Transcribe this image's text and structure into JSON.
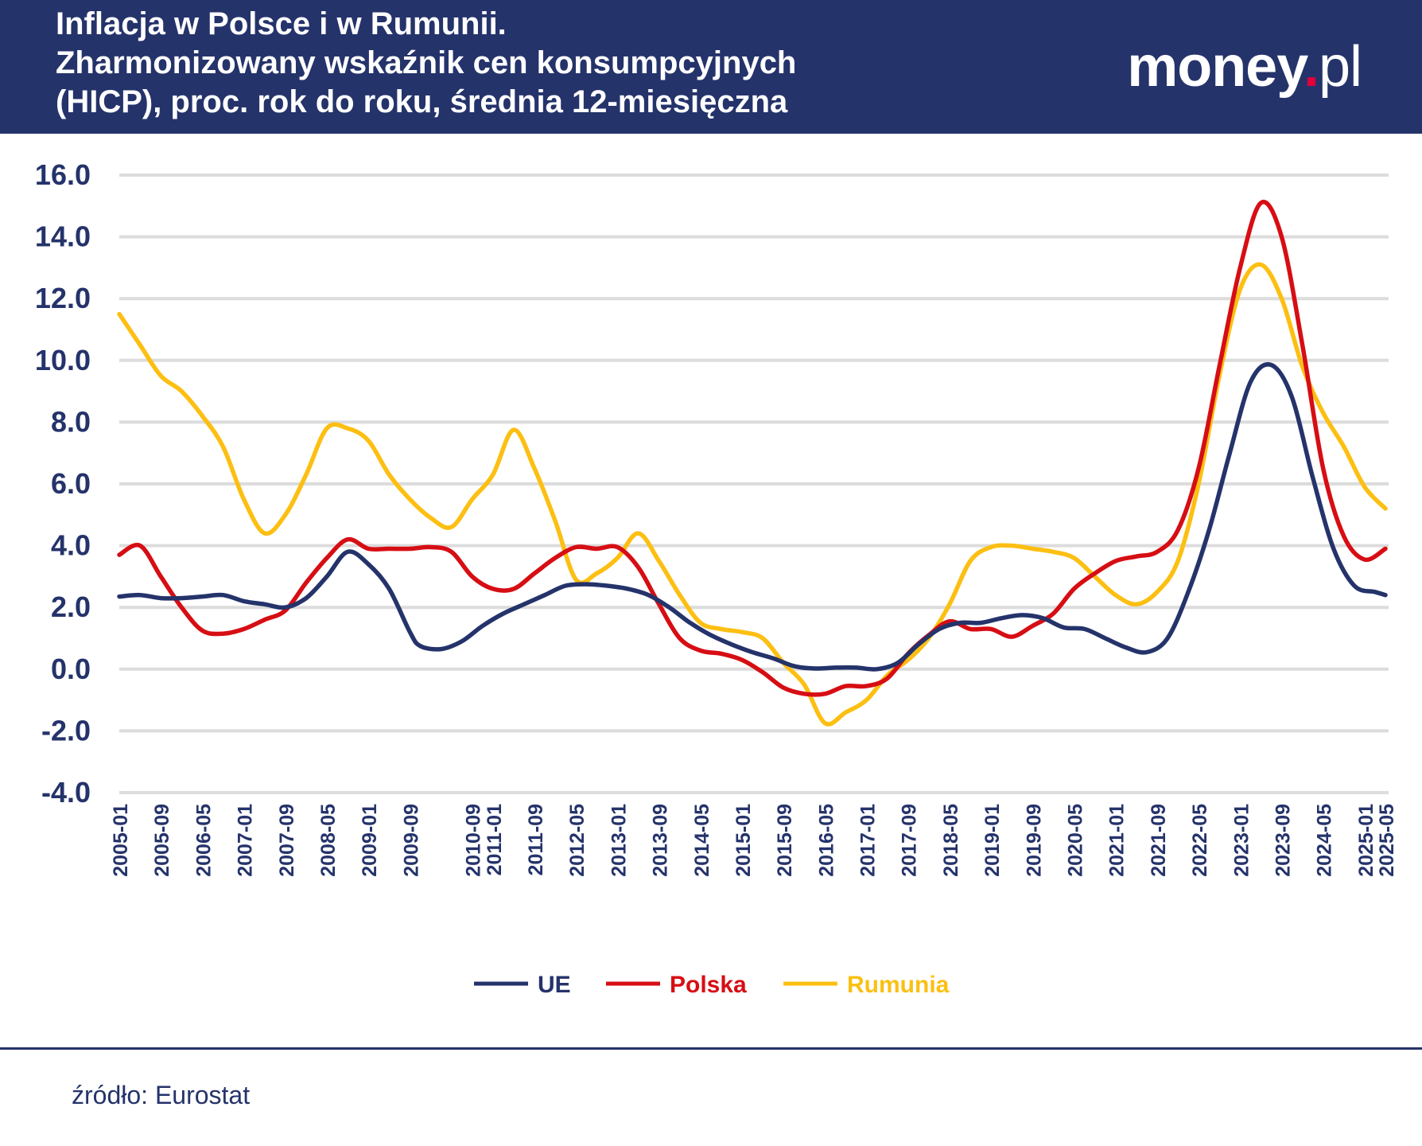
{
  "header": {
    "title_lines": [
      "Inflacja w Polsce i w Rumunii.",
      "Zharmonizowany wskaźnik cen konsumpcyjnych",
      "(HICP), proc. rok do roku, średnia 12-miesięczna"
    ],
    "logo_main": "money",
    "logo_dot": ".",
    "logo_suffix": "pl",
    "background_color": "#25336b",
    "logo_dot_color": "#e2003b"
  },
  "footer": {
    "source": "źródło: Eurostat",
    "rule_color": "#25336b"
  },
  "chart_data": {
    "type": "line",
    "title": "Inflacja w Polsce i w Rumunii. Zharmonizowany wskaźnik cen konsumpcyjnych (HICP), proc. rok do roku, średnia 12-miesięczna",
    "xlabel": "",
    "ylabel": "",
    "ylim": [
      -4.0,
      16.0
    ],
    "y_ticks": [
      16.0,
      14.0,
      12.0,
      10.0,
      8.0,
      6.0,
      4.0,
      2.0,
      0.0,
      -2.0,
      -4.0
    ],
    "y_tick_labels": [
      "16.0",
      "14.0",
      "12.0",
      "10.0",
      "8.0",
      "6.0",
      "4.0",
      "2.0",
      "0.0",
      "-2.0",
      "-4.0"
    ],
    "x_start": "2005-01",
    "x_end": "2025-05",
    "x_tick_labels": [
      "2005-01",
      "2005-09",
      "2006-05",
      "2007-01",
      "2007-09",
      "2008-05",
      "2009-01",
      "2009-09",
      "2010-09",
      "2011-01",
      "2011-09",
      "2012-05",
      "2013-01",
      "2013-09",
      "2014-05",
      "2015-01",
      "2015-09",
      "2016-05",
      "2017-01",
      "2017-09",
      "2018-05",
      "2019-01",
      "2019-09",
      "2020-05",
      "2021-01",
      "2021-09",
      "2022-05",
      "2023-01",
      "2023-09",
      "2024-05",
      "2025-01",
      "2025-05"
    ],
    "grid": true,
    "legend_position": "bottom-center",
    "axis_color": "#25336b",
    "grid_color": "#dcdcdc",
    "series": [
      {
        "name": "UE",
        "color": "#25336b",
        "points": [
          [
            "2005-01",
            2.35
          ],
          [
            "2005-05",
            2.4
          ],
          [
            "2005-09",
            2.3
          ],
          [
            "2006-01",
            2.3
          ],
          [
            "2006-05",
            2.35
          ],
          [
            "2006-09",
            2.4
          ],
          [
            "2007-01",
            2.2
          ],
          [
            "2007-05",
            2.1
          ],
          [
            "2007-09",
            2.0
          ],
          [
            "2008-01",
            2.3
          ],
          [
            "2008-05",
            3.0
          ],
          [
            "2008-09",
            3.8
          ],
          [
            "2009-01",
            3.4
          ],
          [
            "2009-05",
            2.6
          ],
          [
            "2009-09",
            1.2
          ],
          [
            "2009-11",
            0.75
          ],
          [
            "2010-03",
            0.65
          ],
          [
            "2010-07",
            0.9
          ],
          [
            "2010-11",
            1.4
          ],
          [
            "2011-03",
            1.8
          ],
          [
            "2011-07",
            2.1
          ],
          [
            "2011-11",
            2.4
          ],
          [
            "2012-03",
            2.7
          ],
          [
            "2012-07",
            2.75
          ],
          [
            "2012-11",
            2.7
          ],
          [
            "2013-03",
            2.6
          ],
          [
            "2013-07",
            2.4
          ],
          [
            "2013-11",
            2.0
          ],
          [
            "2014-03",
            1.5
          ],
          [
            "2014-07",
            1.1
          ],
          [
            "2014-11",
            0.8
          ],
          [
            "2015-03",
            0.55
          ],
          [
            "2015-07",
            0.35
          ],
          [
            "2015-11",
            0.1
          ],
          [
            "2016-03",
            0.02
          ],
          [
            "2016-07",
            0.05
          ],
          [
            "2016-11",
            0.05
          ],
          [
            "2017-03",
            0.0
          ],
          [
            "2017-07",
            0.2
          ],
          [
            "2017-11",
            0.8
          ],
          [
            "2018-03",
            1.3
          ],
          [
            "2018-07",
            1.5
          ],
          [
            "2018-11",
            1.5
          ],
          [
            "2019-03",
            1.65
          ],
          [
            "2019-07",
            1.75
          ],
          [
            "2019-11",
            1.65
          ],
          [
            "2020-03",
            1.35
          ],
          [
            "2020-07",
            1.3
          ],
          [
            "2020-11",
            1.0
          ],
          [
            "2021-03",
            0.7
          ],
          [
            "2021-07",
            0.55
          ],
          [
            "2021-11",
            1.0
          ],
          [
            "2022-03",
            2.5
          ],
          [
            "2022-07",
            4.5
          ],
          [
            "2022-11",
            7.0
          ],
          [
            "2023-03",
            9.3
          ],
          [
            "2023-07",
            9.85
          ],
          [
            "2023-11",
            8.8
          ],
          [
            "2024-03",
            6.2
          ],
          [
            "2024-07",
            3.9
          ],
          [
            "2024-11",
            2.7
          ],
          [
            "2025-03",
            2.5
          ],
          [
            "2025-05",
            2.4
          ]
        ]
      },
      {
        "name": "Polska",
        "color": "#d60e14",
        "points": [
          [
            "2005-01",
            3.7
          ],
          [
            "2005-05",
            4.0
          ],
          [
            "2005-09",
            3.0
          ],
          [
            "2006-01",
            2.0
          ],
          [
            "2006-05",
            1.25
          ],
          [
            "2006-09",
            1.15
          ],
          [
            "2007-01",
            1.3
          ],
          [
            "2007-05",
            1.6
          ],
          [
            "2007-09",
            1.9
          ],
          [
            "2008-01",
            2.8
          ],
          [
            "2008-05",
            3.6
          ],
          [
            "2008-09",
            4.2
          ],
          [
            "2009-01",
            3.9
          ],
          [
            "2009-05",
            3.9
          ],
          [
            "2009-09",
            3.9
          ],
          [
            "2010-01",
            3.95
          ],
          [
            "2010-05",
            3.8
          ],
          [
            "2010-09",
            3.0
          ],
          [
            "2011-01",
            2.6
          ],
          [
            "2011-05",
            2.6
          ],
          [
            "2011-09",
            3.1
          ],
          [
            "2012-01",
            3.6
          ],
          [
            "2012-05",
            3.95
          ],
          [
            "2012-09",
            3.9
          ],
          [
            "2013-01",
            3.95
          ],
          [
            "2013-05",
            3.3
          ],
          [
            "2013-09",
            2.1
          ],
          [
            "2014-01",
            1.0
          ],
          [
            "2014-05",
            0.6
          ],
          [
            "2014-09",
            0.5
          ],
          [
            "2015-01",
            0.3
          ],
          [
            "2015-05",
            -0.1
          ],
          [
            "2015-09",
            -0.6
          ],
          [
            "2016-01",
            -0.8
          ],
          [
            "2016-05",
            -0.8
          ],
          [
            "2016-09",
            -0.55
          ],
          [
            "2017-01",
            -0.55
          ],
          [
            "2017-05",
            -0.3
          ],
          [
            "2017-09",
            0.5
          ],
          [
            "2018-01",
            1.1
          ],
          [
            "2018-05",
            1.55
          ],
          [
            "2018-09",
            1.3
          ],
          [
            "2019-01",
            1.3
          ],
          [
            "2019-05",
            1.05
          ],
          [
            "2019-09",
            1.4
          ],
          [
            "2020-01",
            1.8
          ],
          [
            "2020-05",
            2.6
          ],
          [
            "2020-09",
            3.1
          ],
          [
            "2021-01",
            3.5
          ],
          [
            "2021-05",
            3.65
          ],
          [
            "2021-09",
            3.8
          ],
          [
            "2022-01",
            4.5
          ],
          [
            "2022-05",
            6.5
          ],
          [
            "2022-09",
            9.8
          ],
          [
            "2023-01",
            13.0
          ],
          [
            "2023-05",
            15.1
          ],
          [
            "2023-09",
            14.0
          ],
          [
            "2024-01",
            10.5
          ],
          [
            "2024-05",
            6.5
          ],
          [
            "2024-09",
            4.3
          ],
          [
            "2025-01",
            3.55
          ],
          [
            "2025-05",
            3.9
          ]
        ]
      },
      {
        "name": "Rumunia",
        "color": "#fcbf12",
        "points": [
          [
            "2005-01",
            11.5
          ],
          [
            "2005-05",
            10.5
          ],
          [
            "2005-09",
            9.5
          ],
          [
            "2006-01",
            9.0
          ],
          [
            "2006-05",
            8.2
          ],
          [
            "2006-09",
            7.2
          ],
          [
            "2007-01",
            5.5
          ],
          [
            "2007-05",
            4.4
          ],
          [
            "2007-09",
            5.0
          ],
          [
            "2008-01",
            6.3
          ],
          [
            "2008-05",
            7.8
          ],
          [
            "2008-09",
            7.8
          ],
          [
            "2009-01",
            7.4
          ],
          [
            "2009-05",
            6.3
          ],
          [
            "2009-09",
            5.5
          ],
          [
            "2010-01",
            4.9
          ],
          [
            "2010-05",
            4.6
          ],
          [
            "2010-09",
            5.5
          ],
          [
            "2011-01",
            6.3
          ],
          [
            "2011-05",
            7.75
          ],
          [
            "2011-09",
            6.5
          ],
          [
            "2012-01",
            4.8
          ],
          [
            "2012-05",
            2.9
          ],
          [
            "2012-09",
            3.1
          ],
          [
            "2013-01",
            3.6
          ],
          [
            "2013-05",
            4.4
          ],
          [
            "2013-09",
            3.5
          ],
          [
            "2014-01",
            2.4
          ],
          [
            "2014-05",
            1.5
          ],
          [
            "2014-09",
            1.3
          ],
          [
            "2015-01",
            1.2
          ],
          [
            "2015-05",
            1.0
          ],
          [
            "2015-09",
            0.2
          ],
          [
            "2016-01",
            -0.5
          ],
          [
            "2016-05",
            -1.75
          ],
          [
            "2016-09",
            -1.4
          ],
          [
            "2017-01",
            -1.0
          ],
          [
            "2017-05",
            -0.2
          ],
          [
            "2017-09",
            0.3
          ],
          [
            "2018-01",
            1.0
          ],
          [
            "2018-05",
            2.1
          ],
          [
            "2018-09",
            3.5
          ],
          [
            "2019-01",
            3.95
          ],
          [
            "2019-05",
            4.0
          ],
          [
            "2019-09",
            3.9
          ],
          [
            "2020-01",
            3.8
          ],
          [
            "2020-05",
            3.6
          ],
          [
            "2020-09",
            3.0
          ],
          [
            "2021-01",
            2.4
          ],
          [
            "2021-05",
            2.1
          ],
          [
            "2021-09",
            2.5
          ],
          [
            "2022-01",
            3.5
          ],
          [
            "2022-05",
            6.0
          ],
          [
            "2022-09",
            9.5
          ],
          [
            "2023-01",
            12.3
          ],
          [
            "2023-05",
            13.1
          ],
          [
            "2023-09",
            12.0
          ],
          [
            "2024-01",
            9.8
          ],
          [
            "2024-05",
            8.3
          ],
          [
            "2024-09",
            7.2
          ],
          [
            "2025-01",
            5.9
          ],
          [
            "2025-05",
            5.2
          ]
        ]
      }
    ]
  }
}
